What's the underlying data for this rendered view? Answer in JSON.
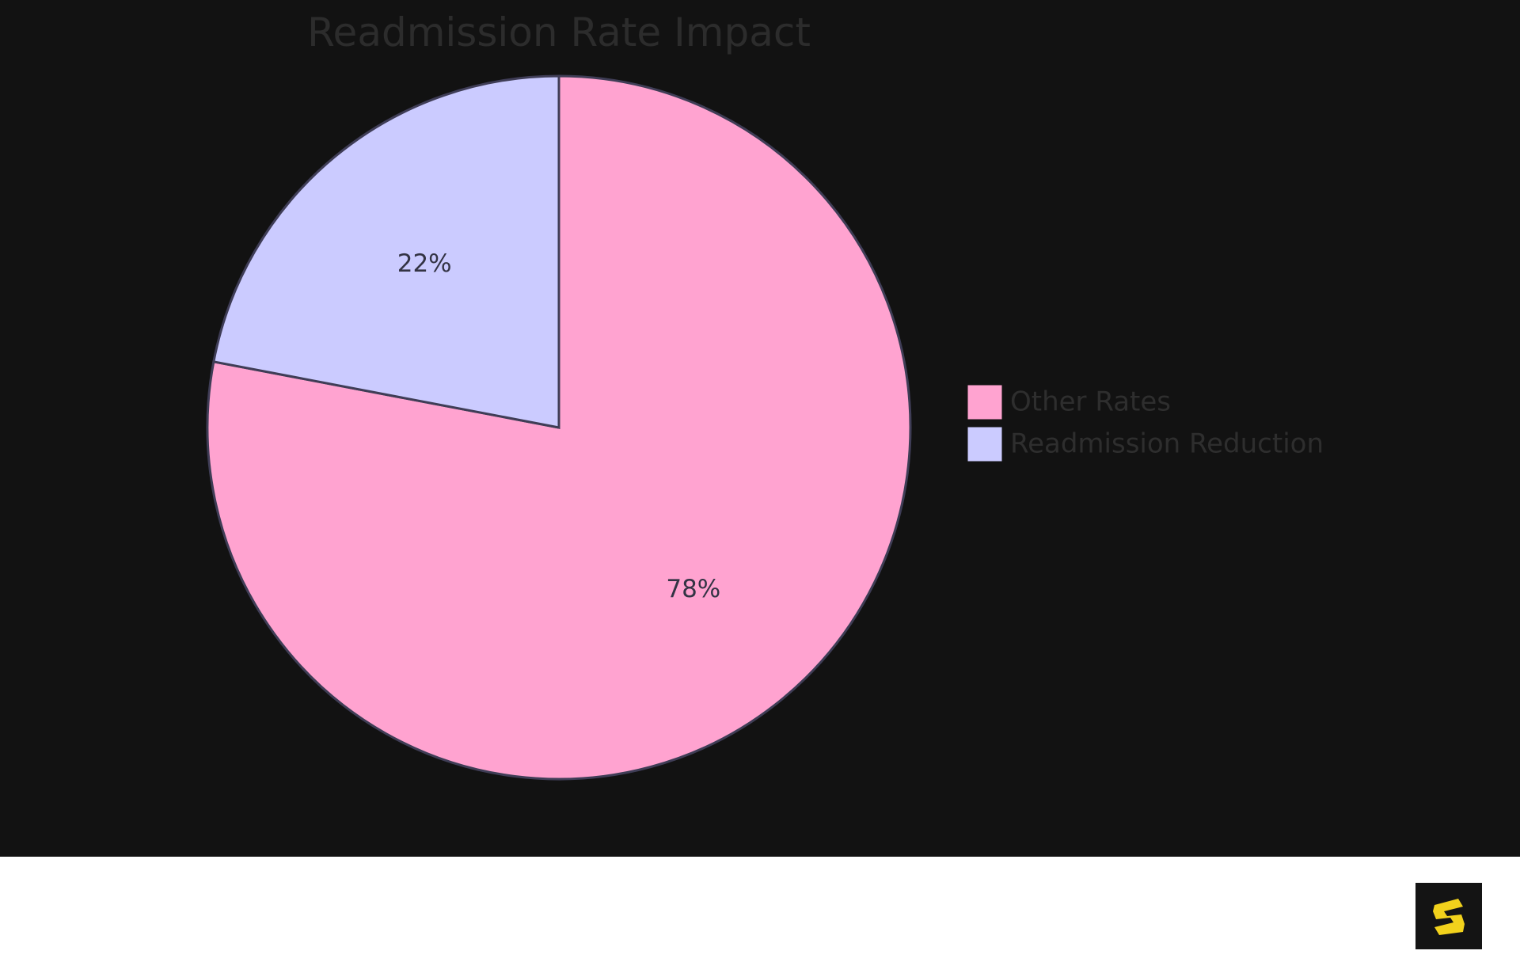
{
  "chart_data": {
    "type": "pie",
    "title": "Readmission Rate Impact",
    "slices": [
      {
        "name": "Other Rates",
        "value": 78,
        "label": "78%",
        "color": "#FFA3D0"
      },
      {
        "name": "Readmission Reduction",
        "value": 22,
        "label": "22%",
        "color": "#CBCBFF"
      }
    ],
    "legend_placement": "right",
    "border_color": "#3f3d56"
  },
  "colors": {
    "background": "#121212",
    "footer": "#ffffff",
    "logo_bg": "#141414",
    "logo_accent": "#f2d21c"
  },
  "logo_icon": "brand-s-logo-icon"
}
